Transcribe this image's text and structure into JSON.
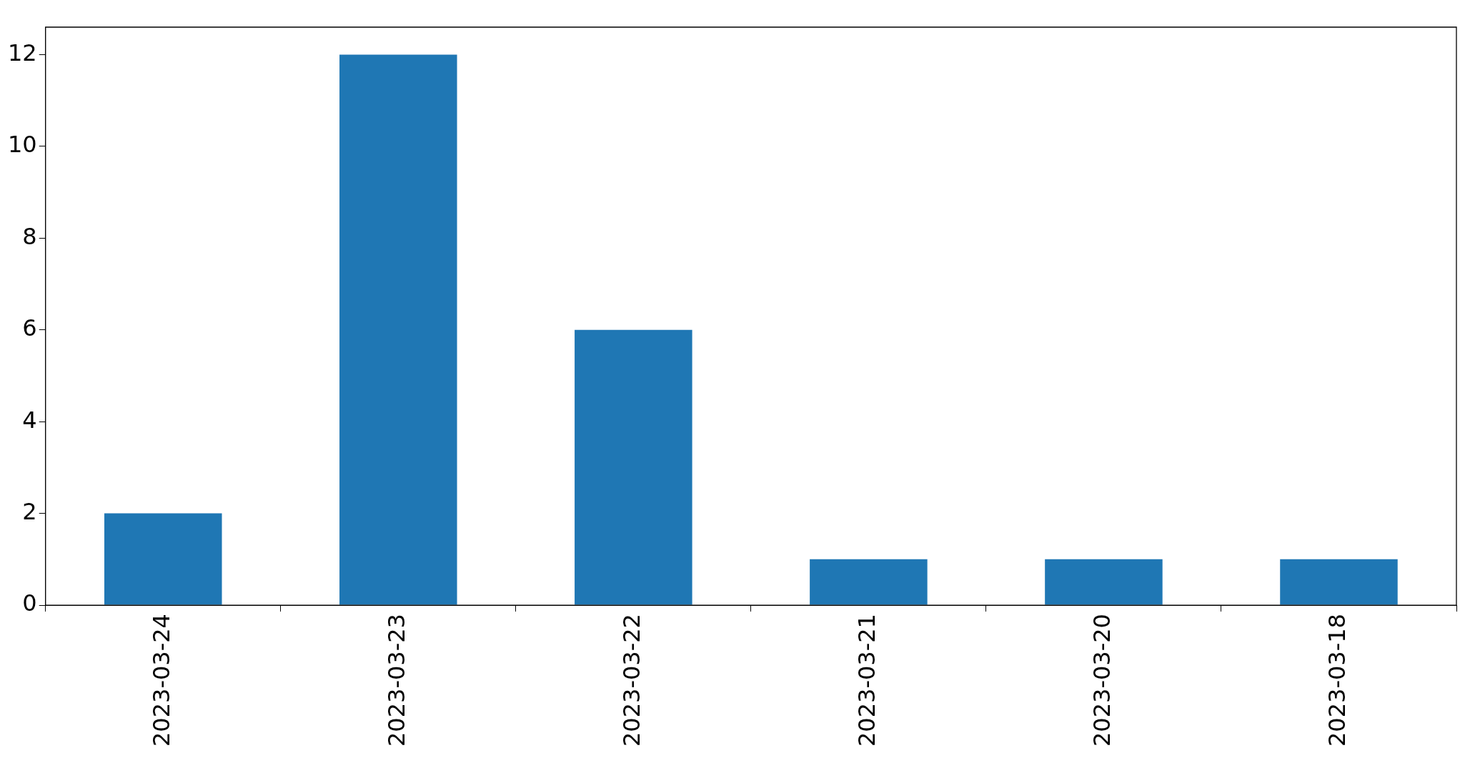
{
  "chart_data": {
    "type": "bar",
    "categories": [
      "2023-03-24",
      "2023-03-23",
      "2023-03-22",
      "2023-03-21",
      "2023-03-20",
      "2023-03-18"
    ],
    "values": [
      2,
      12,
      6,
      1,
      1,
      1
    ],
    "color": "#1f77b4",
    "ylim": [
      0,
      12.6
    ],
    "yticks": [
      0,
      2,
      4,
      6,
      8,
      10,
      12
    ],
    "grid": false,
    "legend": false
  }
}
